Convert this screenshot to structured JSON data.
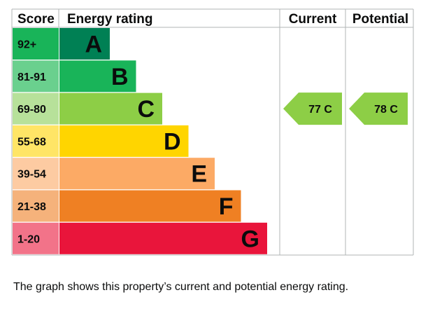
{
  "chart_data": {
    "type": "bar",
    "headers": {
      "score": "Score",
      "rating": "Energy rating",
      "current": "Current",
      "potential": "Potential"
    },
    "bands": [
      {
        "range": "92+",
        "letter": "A",
        "band_color": "#008054",
        "score_color": "#19b459"
      },
      {
        "range": "81-91",
        "letter": "B",
        "band_color": "#19b459",
        "score_color": "#6ad08e"
      },
      {
        "range": "69-80",
        "letter": "C",
        "band_color": "#8dce46",
        "score_color": "#b7e19a"
      },
      {
        "range": "55-68",
        "letter": "D",
        "band_color": "#ffd500",
        "score_color": "#ffe566"
      },
      {
        "range": "39-54",
        "letter": "E",
        "band_color": "#fcaa65",
        "score_color": "#fdcba2"
      },
      {
        "range": "21-38",
        "letter": "F",
        "band_color": "#ef8023",
        "score_color": "#f5b27b"
      },
      {
        "range": "1-20",
        "letter": "G",
        "band_color": "#e9153b",
        "score_color": "#f27389"
      }
    ],
    "current": {
      "value": 77,
      "letter": "C",
      "label": "77 C",
      "band_color": "#8dce46"
    },
    "potential": {
      "value": 78,
      "letter": "C",
      "label": "78 C",
      "band_color": "#8dce46"
    }
  },
  "caption": "The graph shows this property’s current and potential energy rating."
}
